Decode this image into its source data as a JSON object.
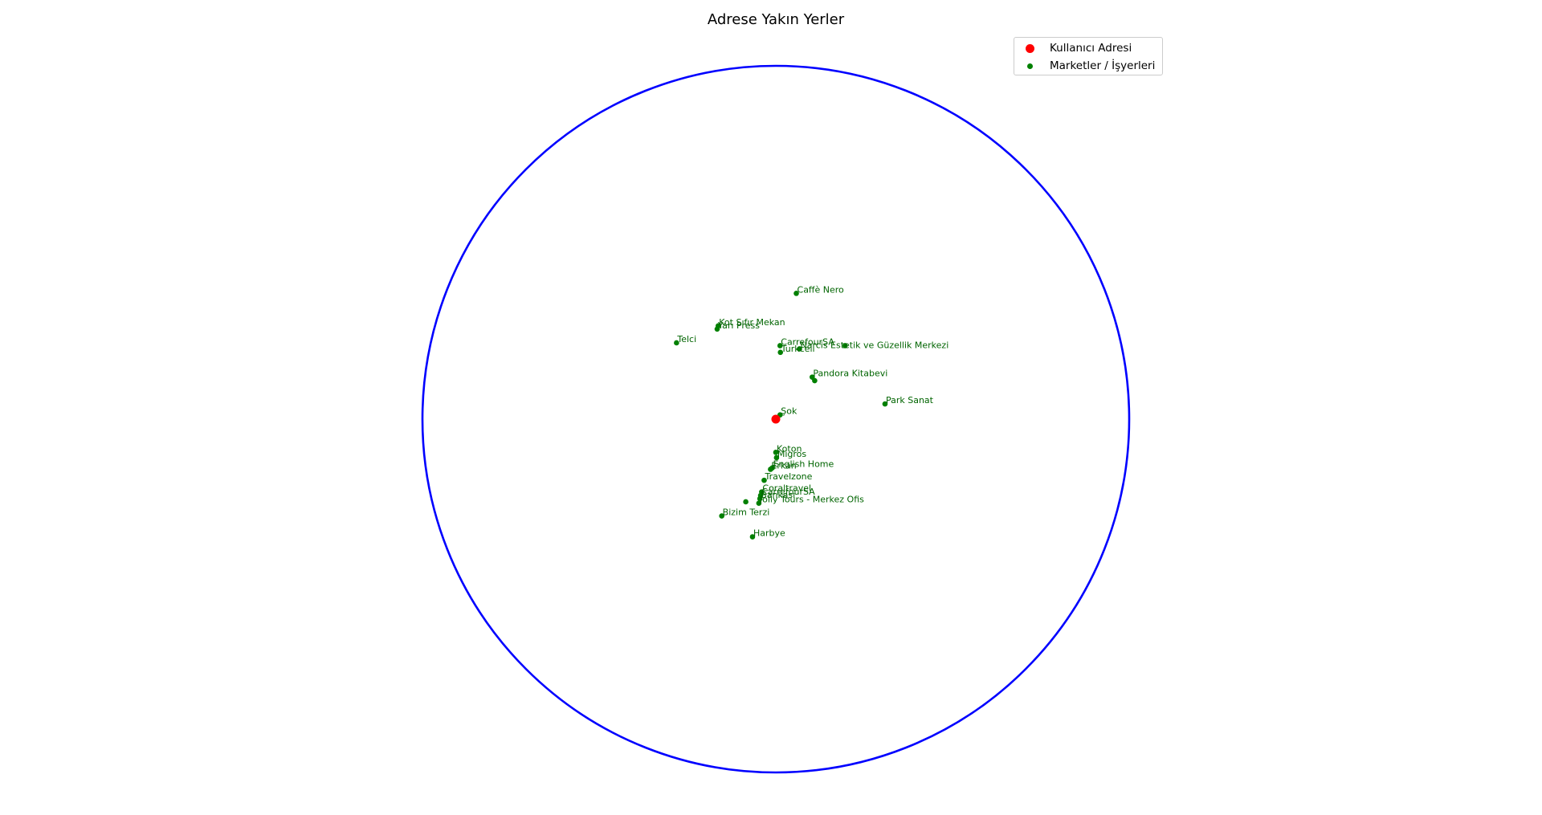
{
  "chart_data": {
    "type": "scatter",
    "title": "Adrese Yakın Yerler",
    "xlabel": "",
    "ylabel": "",
    "axes_visible": false,
    "grid": false,
    "legend_position": "top-right",
    "colors": {
      "user": "#ff0000",
      "places": "#008000",
      "label": "#006400",
      "circle": "#0000ff"
    },
    "radius_circle": {
      "center": [
        0,
        0
      ],
      "radius": 1.0
    },
    "user_point": {
      "name": "Kullanıcı Adresi",
      "x": 0.0,
      "y": 0.0
    },
    "legend": [
      {
        "name": "Kullanıcı Adresi",
        "color": "#ff0000"
      },
      {
        "name": "Marketler / İşyerleri",
        "color": "#008000"
      }
    ],
    "places": [
      {
        "name": "Caffè Nero",
        "x": 0.058,
        "y": 0.356
      },
      {
        "name": "Kot Sıfır Mekan",
        "x": -0.163,
        "y": 0.264
      },
      {
        "name": "Yarı Press",
        "x": -0.166,
        "y": 0.255
      },
      {
        "name": "Telci",
        "x": -0.281,
        "y": 0.216
      },
      {
        "name": "CarrefourSA",
        "x": 0.012,
        "y": 0.208
      },
      {
        "name": "Turkcell",
        "x": 0.013,
        "y": 0.189
      },
      {
        "name": "Narcis Estetik ve Güzellik Merkezi",
        "x": 0.067,
        "y": 0.199
      },
      {
        "name": "",
        "x": 0.196,
        "y": 0.208
      },
      {
        "name": "Pandora Kitabevi",
        "x": 0.103,
        "y": 0.119
      },
      {
        "name": "",
        "x": 0.11,
        "y": 0.109
      },
      {
        "name": "Park Sanat",
        "x": 0.309,
        "y": 0.043
      },
      {
        "name": "Şok",
        "x": 0.012,
        "y": 0.012
      },
      {
        "name": "Koton",
        "x": 0.0,
        "y": -0.094
      },
      {
        "name": "Migros",
        "x": 0.002,
        "y": -0.109
      },
      {
        "name": "English Home",
        "x": -0.01,
        "y": -0.138
      },
      {
        "name": "Erkan",
        "x": -0.015,
        "y": -0.142
      },
      {
        "name": "Travelzone",
        "x": -0.033,
        "y": -0.173
      },
      {
        "name": "Coraltravel",
        "x": -0.04,
        "y": -0.206
      },
      {
        "name": "CarrefourSA",
        "x": -0.043,
        "y": -0.216
      },
      {
        "name": "Bankası",
        "x": -0.045,
        "y": -0.225
      },
      {
        "name": "Jolly Tours - Merkez Ofis",
        "x": -0.048,
        "y": -0.238
      },
      {
        "name": "",
        "x": -0.085,
        "y": -0.234
      },
      {
        "name": "Bizim Terzi",
        "x": -0.153,
        "y": -0.274
      },
      {
        "name": "Harbye",
        "x": -0.066,
        "y": -0.333
      }
    ]
  }
}
